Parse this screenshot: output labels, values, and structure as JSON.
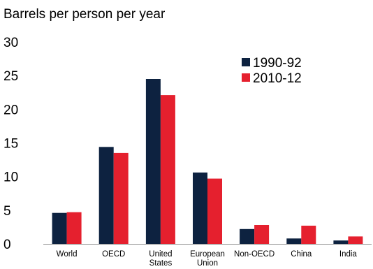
{
  "chart_data": {
    "type": "bar",
    "ylabel": "Barrels per person per year",
    "ylim": [
      0,
      30
    ],
    "yticks": [
      "0",
      "5",
      "10",
      "15",
      "20",
      "25",
      "30"
    ],
    "categories": [
      [
        "World"
      ],
      [
        "OECD"
      ],
      [
        "United",
        "States"
      ],
      [
        "European",
        "Union"
      ],
      [
        "Non-OECD"
      ],
      [
        "China"
      ],
      [
        "India"
      ]
    ],
    "series": [
      {
        "name": "1990-92",
        "color": "#0d2240",
        "values": [
          4.6,
          14.4,
          24.5,
          10.6,
          2.2,
          0.8,
          0.5
        ]
      },
      {
        "name": "2010-12",
        "color": "#e5202e",
        "values": [
          4.7,
          13.5,
          22.1,
          9.7,
          2.8,
          2.7,
          1.1
        ]
      }
    ],
    "legend": "top-right",
    "grid": false
  }
}
